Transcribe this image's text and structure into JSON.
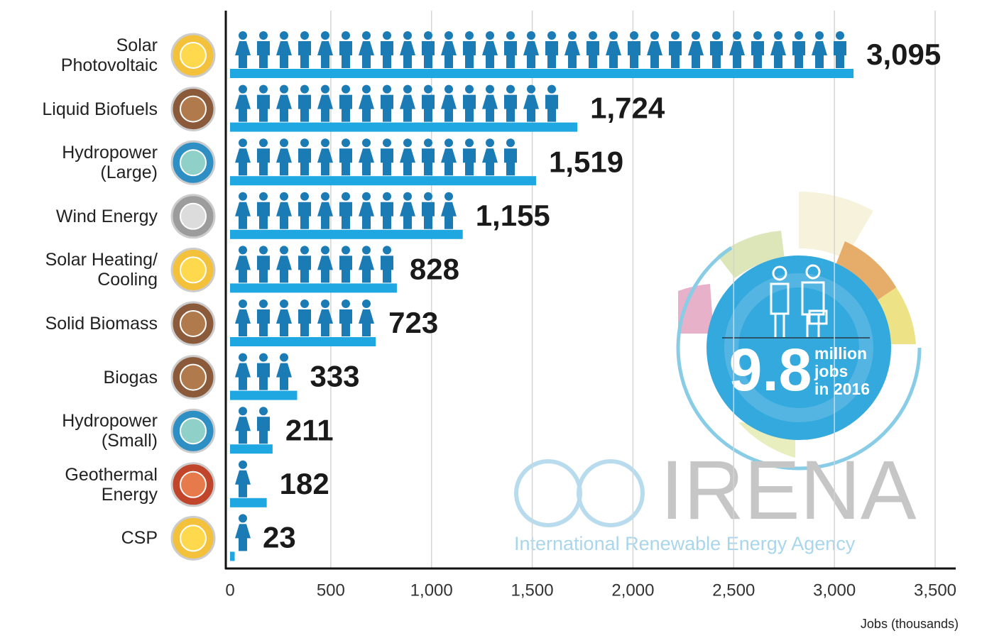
{
  "chart_data": {
    "type": "bar",
    "orientation": "horizontal",
    "categories": [
      "Solar Photovoltaic",
      "Liquid Biofuels",
      "Hydropower (Large)",
      "Wind Energy",
      "Solar Heating/ Cooling",
      "Solid Biomass",
      "Biogas",
      "Hydropower (Small)",
      "Geothermal Energy",
      "CSP"
    ],
    "values": [
      3095,
      1724,
      1519,
      1155,
      828,
      723,
      333,
      211,
      182,
      23
    ],
    "value_labels": [
      "3,095",
      "1,724",
      "1,519",
      "1,155",
      "828",
      "723",
      "333",
      "211",
      "182",
      "23"
    ],
    "color": "#1ea7e0",
    "icon_color": "#1b7bb5",
    "xlim": [
      0,
      3500
    ],
    "xticks": [
      0,
      500,
      {
        "value": 1000,
        "label": "1,000"
      },
      {
        "value": 1500,
        "label": "1,500"
      },
      {
        "value": 2000,
        "label": "2,000"
      },
      {
        "value": 2500,
        "label": "2,500"
      },
      {
        "value": 3000,
        "label": "3,000"
      },
      {
        "value": 3500,
        "label": "3,500"
      }
    ],
    "xlabel": "Jobs (thousands)",
    "grid": true,
    "inset_number": "9.8",
    "inset_text": [
      "million",
      "jobs",
      "in 2016"
    ],
    "logo_name": "IRENA",
    "logo_subtitle": "International Renewable Energy Agency"
  }
}
